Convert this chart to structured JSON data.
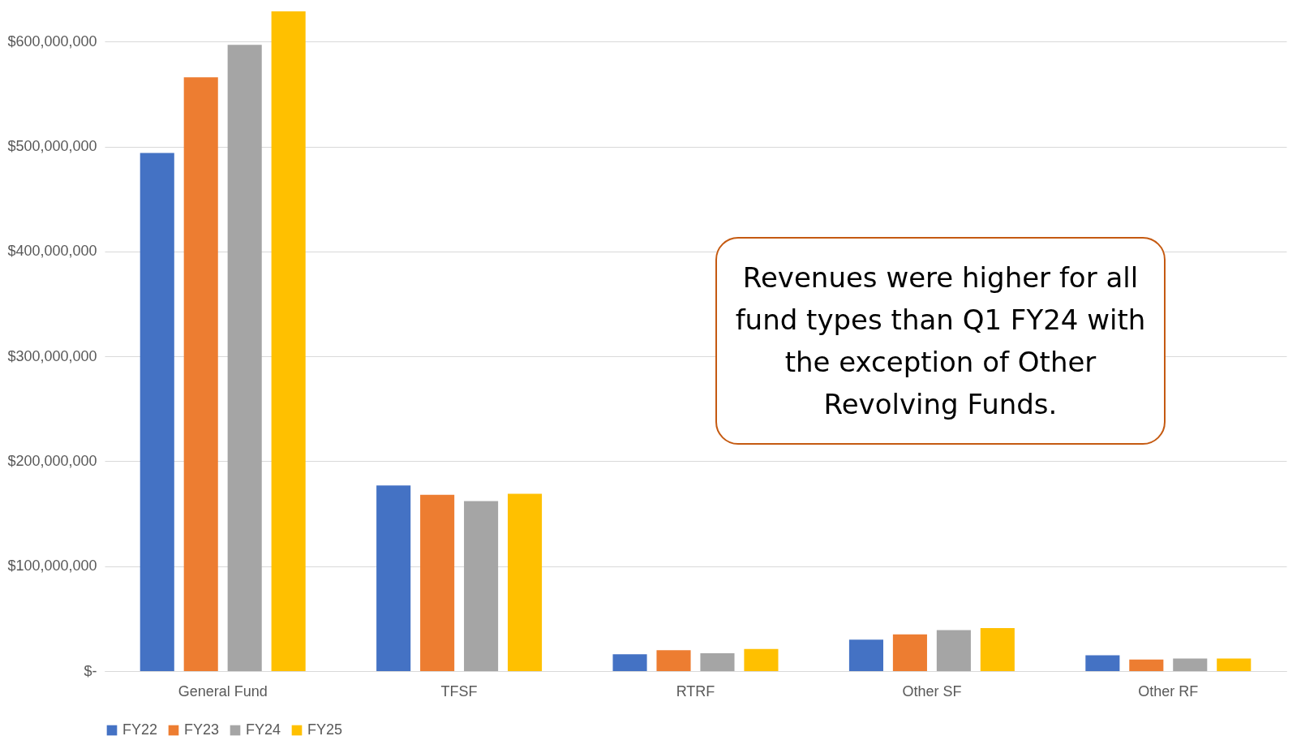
{
  "chart_data": {
    "type": "bar",
    "categories": [
      "General Fund",
      "TFSF",
      "RTRF",
      "Other SF",
      "Other RF"
    ],
    "series": [
      {
        "name": "FY22",
        "color": "#4472c4",
        "values": [
          494000000,
          177000000,
          16000000,
          30000000,
          15000000
        ]
      },
      {
        "name": "FY23",
        "color": "#ed7d31",
        "values": [
          566000000,
          168000000,
          20000000,
          35000000,
          11000000
        ]
      },
      {
        "name": "FY24",
        "color": "#a5a5a5",
        "values": [
          597000000,
          162000000,
          17000000,
          39000000,
          12000000
        ]
      },
      {
        "name": "FY25",
        "color": "#ffc000",
        "values": [
          629000000,
          169000000,
          21000000,
          41000000,
          12000000
        ]
      }
    ],
    "ylim": [
      0,
      632000000
    ],
    "yticks": [
      {
        "value": 0,
        "label": "$-"
      },
      {
        "value": 100000000,
        "label": "$100,000,000"
      },
      {
        "value": 200000000,
        "label": "$200,000,000"
      },
      {
        "value": 300000000,
        "label": "$300,000,000"
      },
      {
        "value": 400000000,
        "label": "$400,000,000"
      },
      {
        "value": 500000000,
        "label": "$500,000,000"
      },
      {
        "value": 600000000,
        "label": "$600,000,000"
      }
    ],
    "grid": "y",
    "legend": "bottom",
    "annotations": [
      "Revenues were higher for all fund types than Q1 FY24 with the exception of Other Revolving Funds."
    ]
  }
}
